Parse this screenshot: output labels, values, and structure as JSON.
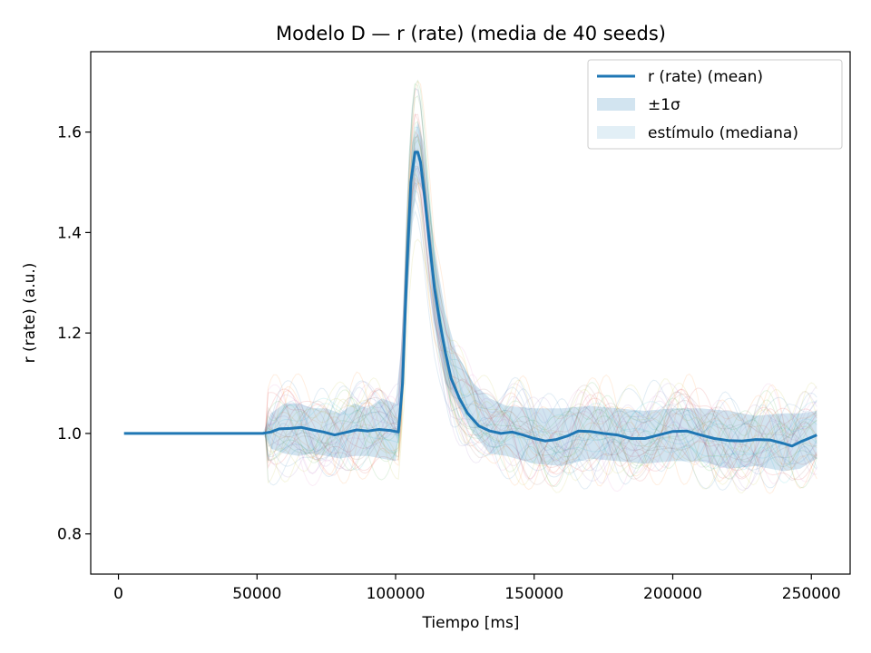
{
  "chart_data": {
    "type": "line",
    "title": "Modelo D — r (rate) (media de 40 seeds)",
    "xlabel": "Tiempo [ms]",
    "ylabel": "r (rate) (a.u.)",
    "xlim": [
      -10000,
      264000
    ],
    "ylim": [
      0.72,
      1.76
    ],
    "xticks": [
      0,
      50000,
      100000,
      150000,
      200000,
      250000
    ],
    "xtick_labels": [
      "0",
      "50000",
      "100000",
      "150000",
      "200000",
      "250000"
    ],
    "yticks": [
      0.8,
      1.0,
      1.2,
      1.4,
      1.6
    ],
    "ytick_labels": [
      "0.8",
      "1.0",
      "1.2",
      "1.4",
      "1.6"
    ],
    "grid": false,
    "legend_position": "top-right",
    "legend": [
      {
        "label": "r (rate) (mean)",
        "kind": "line",
        "color": "#1f77b4"
      },
      {
        "label": "±1σ",
        "kind": "patch",
        "color": "#1f77b4",
        "alpha": 0.2
      },
      {
        "label": "estímulo (mediana)",
        "kind": "patch",
        "color": "#9ecae1",
        "alpha": 0.3
      }
    ],
    "mean_color": "#1f77b4",
    "band_color": "#1f77b4",
    "individual_seed_count": 40,
    "series": [
      {
        "name": "r (rate) (mean)",
        "x": [
          2000,
          20000,
          40000,
          52000,
          55000,
          58000,
          62000,
          66000,
          70000,
          74000,
          78000,
          82000,
          86000,
          90000,
          94000,
          98000,
          101000,
          102500,
          104000,
          105500,
          107000,
          108000,
          109000,
          110500,
          112000,
          114000,
          116000,
          118000,
          120000,
          123000,
          126000,
          130000,
          134000,
          138000,
          142000,
          146000,
          150000,
          154000,
          158000,
          162000,
          166000,
          170000,
          175000,
          180000,
          185000,
          190000,
          195000,
          200000,
          205000,
          210000,
          215000,
          220000,
          225000,
          230000,
          235000,
          240000,
          243000,
          246000,
          249000,
          252000
        ],
        "y": [
          1.0,
          1.0,
          1.0,
          1.0,
          1.003,
          1.009,
          1.01,
          1.012,
          1.007,
          1.003,
          0.997,
          1.002,
          1.007,
          1.005,
          1.008,
          1.006,
          1.003,
          1.1,
          1.32,
          1.5,
          1.56,
          1.56,
          1.54,
          1.47,
          1.39,
          1.29,
          1.22,
          1.16,
          1.11,
          1.07,
          1.04,
          1.015,
          1.005,
          1.0,
          1.003,
          0.997,
          0.99,
          0.985,
          0.988,
          0.995,
          1.005,
          1.004,
          1.0,
          0.997,
          0.99,
          0.99,
          0.997,
          1.004,
          1.005,
          0.997,
          0.99,
          0.986,
          0.985,
          0.988,
          0.987,
          0.98,
          0.975,
          0.983,
          0.99,
          0.997
        ]
      },
      {
        "name": "±1σ upper",
        "x": [
          52000,
          55000,
          60000,
          65000,
          70000,
          75000,
          80000,
          85000,
          90000,
          95000,
          100000,
          102000,
          104000,
          106000,
          108000,
          110000,
          114000,
          118000,
          122000,
          128000,
          134000,
          140000,
          150000,
          160000,
          170000,
          180000,
          190000,
          200000,
          210000,
          220000,
          230000,
          240000,
          246000,
          252000
        ],
        "y": [
          1.0,
          1.04,
          1.06,
          1.06,
          1.05,
          1.05,
          1.04,
          1.06,
          1.05,
          1.07,
          1.06,
          1.17,
          1.4,
          1.58,
          1.62,
          1.58,
          1.37,
          1.24,
          1.16,
          1.1,
          1.07,
          1.055,
          1.05,
          1.05,
          1.055,
          1.05,
          1.045,
          1.05,
          1.05,
          1.045,
          1.035,
          1.04,
          1.04,
          1.045
        ]
      },
      {
        "name": "±1σ lower",
        "x": [
          52000,
          55000,
          60000,
          65000,
          70000,
          75000,
          80000,
          85000,
          90000,
          95000,
          100000,
          102000,
          104000,
          106000,
          108000,
          110000,
          114000,
          118000,
          122000,
          128000,
          134000,
          140000,
          150000,
          160000,
          170000,
          180000,
          190000,
          200000,
          210000,
          220000,
          230000,
          240000,
          246000,
          252000
        ],
        "y": [
          1.0,
          0.97,
          0.96,
          0.955,
          0.96,
          0.955,
          0.95,
          0.955,
          0.955,
          0.95,
          0.945,
          1.03,
          1.24,
          1.42,
          1.5,
          1.48,
          1.22,
          1.1,
          1.06,
          1.0,
          0.96,
          0.955,
          0.94,
          0.935,
          0.95,
          0.945,
          0.94,
          0.945,
          0.945,
          0.93,
          0.935,
          0.925,
          0.93,
          0.95
        ]
      }
    ]
  }
}
